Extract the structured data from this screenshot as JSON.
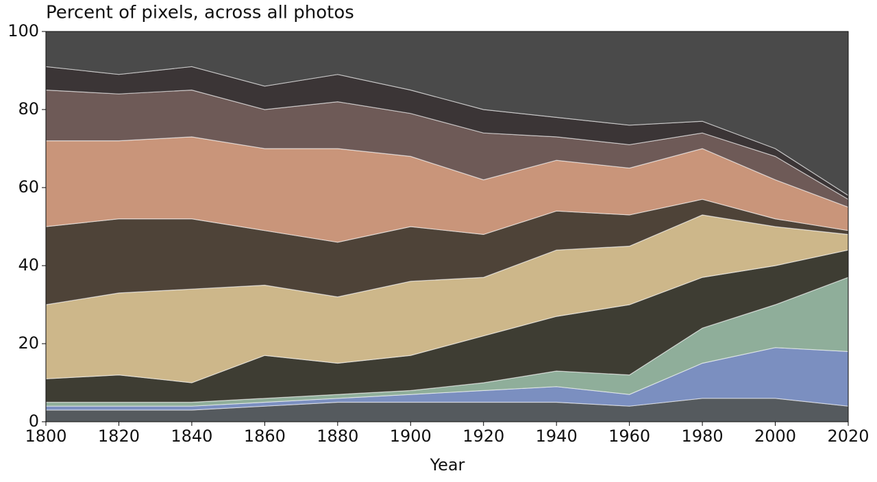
{
  "chart_data": {
    "type": "stacked_area",
    "title": "Percent of pixels, across all photos",
    "xlabel": "Year",
    "x": [
      1800,
      1820,
      1840,
      1860,
      1880,
      1900,
      1920,
      1940,
      1960,
      1980,
      2000,
      2020
    ],
    "xlim": [
      1800,
      2020
    ],
    "xticks": [
      1800,
      1820,
      1840,
      1860,
      1880,
      1900,
      1920,
      1940,
      1960,
      1980,
      2000,
      2020
    ],
    "ylim": [
      0,
      100
    ],
    "yticks": [
      0,
      20,
      40,
      60,
      80,
      100
    ],
    "series": [
      {
        "color": "#555a5e",
        "values": [
          3,
          3,
          3,
          4,
          5,
          5,
          5,
          5,
          4,
          6,
          6,
          4
        ]
      },
      {
        "color": "#7b8fc0",
        "values": [
          1,
          1,
          1,
          1,
          1,
          2,
          3,
          4,
          3,
          9,
          13,
          14
        ]
      },
      {
        "color": "#8fae9a",
        "values": [
          1,
          1,
          1,
          1,
          1,
          1,
          2,
          4,
          5,
          9,
          11,
          19
        ]
      },
      {
        "color": "#3e3d33",
        "values": [
          6,
          7,
          5,
          11,
          8,
          9,
          12,
          14,
          18,
          13,
          10,
          7
        ]
      },
      {
        "color": "#cdb78a",
        "values": [
          19,
          21,
          24,
          18,
          17,
          19,
          15,
          17,
          15,
          16,
          10,
          4
        ]
      },
      {
        "color": "#4e4338",
        "values": [
          20,
          19,
          18,
          14,
          14,
          14,
          11,
          10,
          8,
          4,
          2,
          1
        ]
      },
      {
        "color": "#c9957a",
        "values": [
          22,
          20,
          21,
          21,
          24,
          18,
          14,
          13,
          12,
          13,
          10,
          6
        ]
      },
      {
        "color": "#6e5a57",
        "values": [
          13,
          12,
          12,
          10,
          12,
          11,
          12,
          6,
          6,
          4,
          6,
          2
        ]
      },
      {
        "color": "#3b3536",
        "values": [
          6,
          5,
          6,
          6,
          7,
          6,
          6,
          5,
          5,
          3,
          2,
          1
        ]
      },
      {
        "color": "#4a4a4a",
        "values": [
          9,
          11,
          9,
          14,
          11,
          15,
          20,
          22,
          24,
          23,
          30,
          42
        ]
      }
    ]
  }
}
